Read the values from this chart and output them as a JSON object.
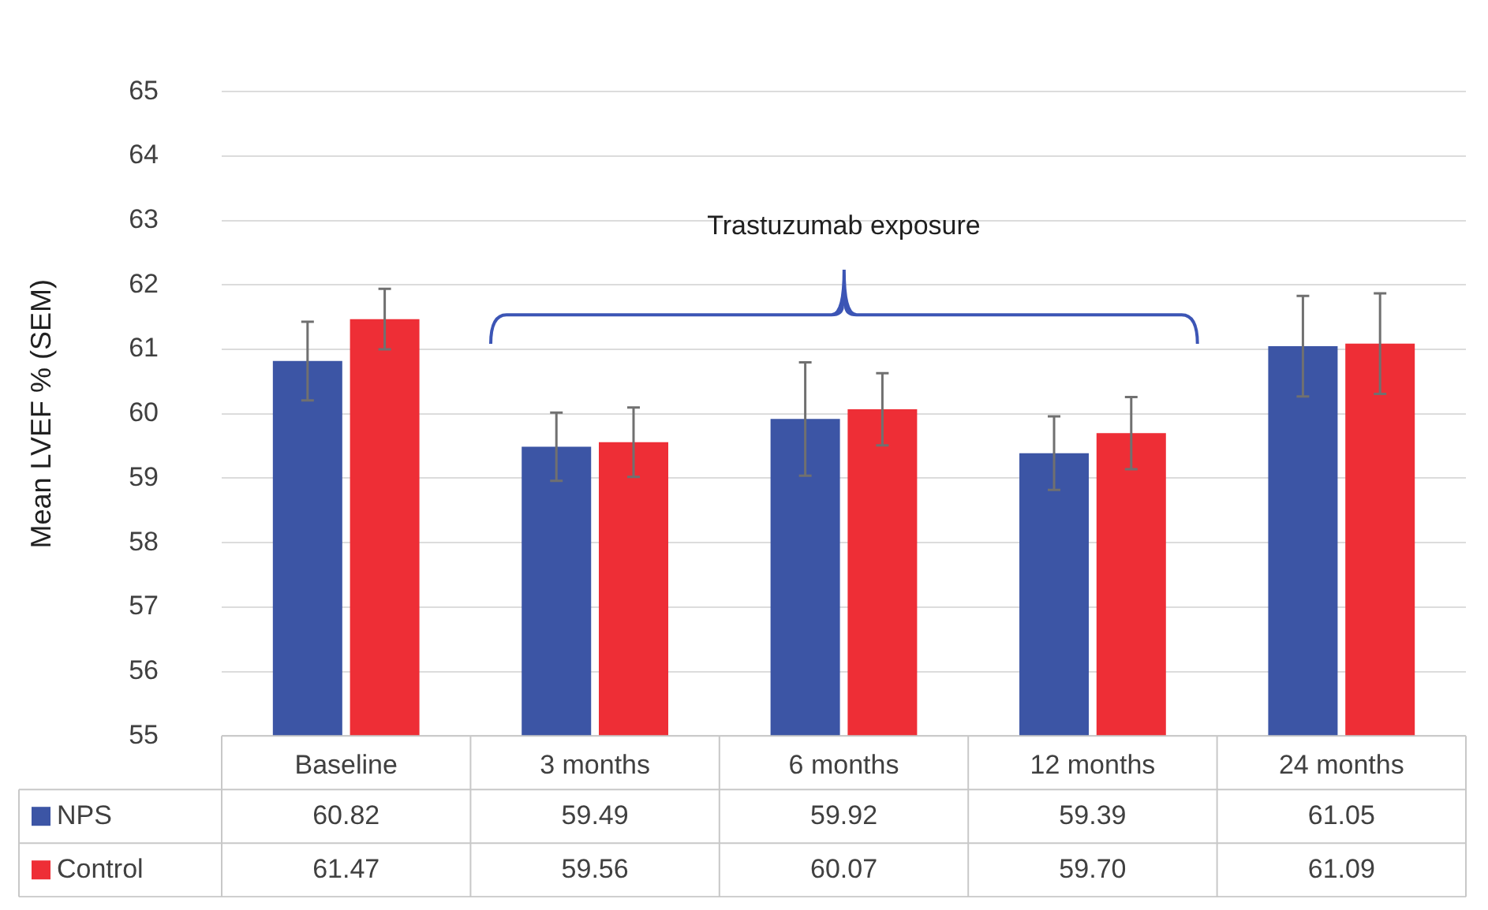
{
  "chart_data": {
    "type": "bar",
    "ylabel": "Mean LVEF % (SEM)",
    "categories": [
      "Baseline",
      "3 months",
      "6 months",
      "12 months",
      "24 months"
    ],
    "series": [
      {
        "name": "NPS",
        "color": "#3c55a5",
        "values": [
          60.82,
          59.49,
          59.92,
          59.39,
          61.05
        ],
        "value_labels": [
          "60.82",
          "59.49",
          "59.92",
          "59.39",
          "61.05"
        ],
        "errors": [
          0.61,
          0.53,
          0.88,
          0.57,
          0.78
        ]
      },
      {
        "name": "Control",
        "color": "#ee2e36",
        "values": [
          61.47,
          59.56,
          60.07,
          59.7,
          61.09
        ],
        "value_labels": [
          "61.47",
          "59.56",
          "60.07",
          "59.70",
          "61.09"
        ],
        "errors": [
          0.47,
          0.54,
          0.56,
          0.56,
          0.78
        ]
      }
    ],
    "ylim": [
      55,
      65
    ],
    "yticks": [
      55,
      56,
      57,
      58,
      59,
      60,
      61,
      62,
      63,
      64,
      65
    ],
    "grid": "y",
    "legend": "bottom",
    "annotations": [
      "Trastuzumab exposure"
    ]
  }
}
